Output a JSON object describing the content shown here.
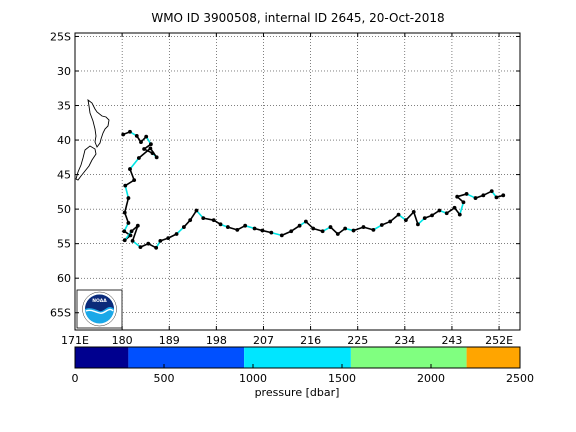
{
  "title": "WMO ID 3900508, internal ID 2645, 20-Oct-2018",
  "map": {
    "lon_range": [
      171,
      256
    ],
    "lat_range": [
      -67.5,
      -24.5
    ],
    "lon_ticks": [
      {
        "value": 171,
        "label": "171E"
      },
      {
        "value": 180,
        "label": "180"
      },
      {
        "value": 189,
        "label": "189"
      },
      {
        "value": 198,
        "label": "198"
      },
      {
        "value": 207,
        "label": "207"
      },
      {
        "value": 216,
        "label": "216"
      },
      {
        "value": 225,
        "label": "225"
      },
      {
        "value": 234,
        "label": "234"
      },
      {
        "value": 243,
        "label": "243"
      },
      {
        "value": 252,
        "label": "252E"
      }
    ],
    "lat_ticks": [
      {
        "value": -25,
        "label": "25S"
      },
      {
        "value": -30,
        "label": "30"
      },
      {
        "value": -35,
        "label": "35"
      },
      {
        "value": -40,
        "label": "40"
      },
      {
        "value": -45,
        "label": "45"
      },
      {
        "value": -50,
        "label": "50"
      },
      {
        "value": -55,
        "label": "55"
      },
      {
        "value": -60,
        "label": "60"
      },
      {
        "value": -65,
        "label": "65S"
      }
    ],
    "grid": "dotted",
    "track_color_main": "#000000",
    "track_color_accent": "#00e5e5"
  },
  "chart_data": {
    "type": "scatter",
    "title": "WMO ID 3900508, internal ID 2645, 20-Oct-2018",
    "xlim": [
      171,
      256
    ],
    "ylim": [
      -67.5,
      -24.5
    ],
    "track": [
      [
        180.2,
        -39.2
      ],
      [
        181.5,
        -38.8
      ],
      [
        182.8,
        -39.4
      ],
      [
        183.6,
        -40.3
      ],
      [
        184.6,
        -39.5
      ],
      [
        185.5,
        -40.6
      ],
      [
        184.2,
        -41.3
      ],
      [
        185.8,
        -41.9
      ],
      [
        186.6,
        -42.5
      ],
      [
        185.4,
        -41.2
      ],
      [
        183.2,
        -42.6
      ],
      [
        181.5,
        -44.2
      ],
      [
        182.3,
        -45.8
      ],
      [
        180.6,
        -46.6
      ],
      [
        181.2,
        -48.4
      ],
      [
        180.5,
        -50.5
      ],
      [
        181.2,
        -52.0
      ],
      [
        180.4,
        -53.2
      ],
      [
        181.6,
        -53.8
      ],
      [
        180.5,
        -54.5
      ],
      [
        181.8,
        -53.2
      ],
      [
        183.0,
        -52.4
      ],
      [
        182.0,
        -54.6
      ],
      [
        183.5,
        -55.5
      ],
      [
        185.0,
        -55.0
      ],
      [
        186.5,
        -55.6
      ],
      [
        187.3,
        -54.6
      ],
      [
        188.8,
        -54.2
      ],
      [
        190.4,
        -53.6
      ],
      [
        191.8,
        -52.6
      ],
      [
        193.0,
        -51.6
      ],
      [
        194.2,
        -50.2
      ],
      [
        195.5,
        -51.3
      ],
      [
        197.5,
        -51.6
      ],
      [
        198.8,
        -52.2
      ],
      [
        200.2,
        -52.6
      ],
      [
        202.0,
        -53.0
      ],
      [
        203.5,
        -52.4
      ],
      [
        205.3,
        -52.8
      ],
      [
        206.8,
        -53.1
      ],
      [
        208.5,
        -53.4
      ],
      [
        210.5,
        -53.8
      ],
      [
        212.3,
        -53.2
      ],
      [
        213.9,
        -52.4
      ],
      [
        215.1,
        -51.8
      ],
      [
        216.5,
        -52.8
      ],
      [
        218.3,
        -53.2
      ],
      [
        219.8,
        -52.6
      ],
      [
        221.2,
        -53.6
      ],
      [
        222.6,
        -52.8
      ],
      [
        224.2,
        -53.1
      ],
      [
        226.1,
        -52.6
      ],
      [
        228.0,
        -53.0
      ],
      [
        229.6,
        -52.3
      ],
      [
        231.2,
        -51.8
      ],
      [
        232.8,
        -50.8
      ],
      [
        234.2,
        -51.6
      ],
      [
        235.7,
        -50.4
      ],
      [
        236.5,
        -52.2
      ],
      [
        237.8,
        -51.3
      ],
      [
        239.2,
        -50.9
      ],
      [
        240.6,
        -50.2
      ],
      [
        242.0,
        -50.6
      ],
      [
        243.5,
        -49.8
      ],
      [
        244.5,
        -50.8
      ],
      [
        245.2,
        -49.0
      ],
      [
        244.0,
        -48.2
      ],
      [
        245.8,
        -47.8
      ],
      [
        247.5,
        -48.4
      ],
      [
        249.0,
        -48.0
      ],
      [
        250.6,
        -47.4
      ],
      [
        251.5,
        -48.3
      ],
      [
        252.8,
        -48.0
      ]
    ],
    "colorbar": {
      "label": "pressure [dbar]",
      "range": [
        0,
        2500
      ],
      "tick_values": [
        0,
        500,
        1000,
        1500,
        2000,
        2500
      ],
      "tick_labels": [
        "0",
        "500",
        "1000",
        "1500",
        "2000",
        "2500"
      ],
      "bins": [
        {
          "from": 0,
          "to": 300,
          "color": "#00008f"
        },
        {
          "from": 300,
          "to": 950,
          "color": "#0050ff"
        },
        {
          "from": 950,
          "to": 1550,
          "color": "#00e6ff"
        },
        {
          "from": 1550,
          "to": 2200,
          "color": "#80ff80"
        },
        {
          "from": 2200,
          "to": 2500,
          "color": "#ffa500"
        }
      ]
    }
  },
  "logo": {
    "text": "NOAA",
    "ring_color": "#ffffff",
    "top_color": "#0b2a7a",
    "bottom_color": "#1aa8e8"
  }
}
